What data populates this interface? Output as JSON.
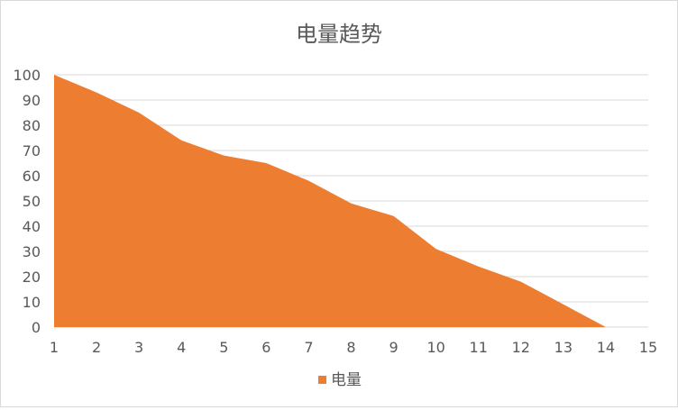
{
  "chart_data": {
    "type": "area",
    "title": "电量趋势",
    "xlabel": "",
    "ylabel": "",
    "x": [
      1,
      2,
      3,
      4,
      5,
      6,
      7,
      8,
      9,
      10,
      11,
      12,
      13,
      14
    ],
    "x_ticks": [
      "1",
      "2",
      "3",
      "4",
      "5",
      "6",
      "7",
      "8",
      "9",
      "10",
      "11",
      "12",
      "13",
      "14",
      "15"
    ],
    "y_ticks": [
      "0",
      "10",
      "20",
      "30",
      "40",
      "50",
      "60",
      "70",
      "80",
      "90",
      "100"
    ],
    "xlim": [
      1,
      15
    ],
    "ylim": [
      0,
      100
    ],
    "grid": true,
    "legend_position": "bottom",
    "series": [
      {
        "name": "电量",
        "color": "#ED7D31",
        "values": [
          100,
          93,
          85,
          74,
          68,
          65,
          58,
          49,
          44,
          31,
          24,
          18,
          9,
          0
        ]
      }
    ]
  }
}
